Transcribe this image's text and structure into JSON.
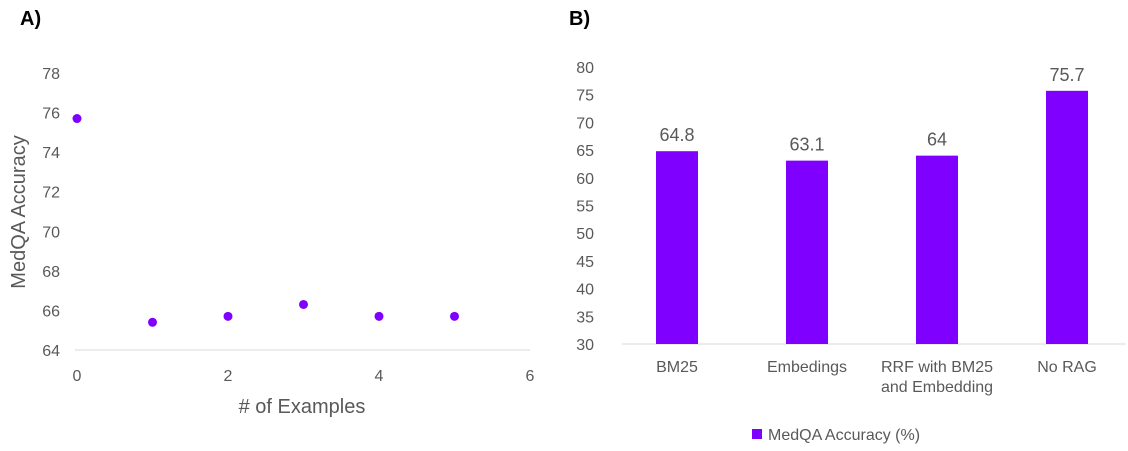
{
  "panels": {
    "a_label": "A)",
    "b_label": "B)"
  },
  "chart_data": [
    {
      "type": "scatter",
      "xlabel": "# of Examples",
      "ylabel": "MedQA  Accuracy",
      "xlim": [
        0,
        6
      ],
      "ylim": [
        64,
        78
      ],
      "x_ticks": [
        0,
        2,
        4,
        6
      ],
      "y_ticks": [
        64,
        66,
        68,
        70,
        72,
        74,
        76,
        78
      ],
      "grid": false,
      "color": "#7F00FF",
      "points": [
        {
          "x": 0,
          "y": 75.7
        },
        {
          "x": 1,
          "y": 65.4
        },
        {
          "x": 2,
          "y": 65.7
        },
        {
          "x": 3,
          "y": 66.3
        },
        {
          "x": 4,
          "y": 65.7
        },
        {
          "x": 5,
          "y": 65.7
        }
      ]
    },
    {
      "type": "bar",
      "categories": [
        [
          "BM25"
        ],
        [
          "Embedings"
        ],
        [
          "RRF with BM25",
          "and Embedding"
        ],
        [
          "No RAG"
        ]
      ],
      "series": [
        {
          "name": "MedQA Accuracy (%)",
          "values": [
            64.8,
            63.1,
            64,
            75.7
          ],
          "color": "#7F00FF"
        }
      ],
      "value_labels": [
        "64.8",
        "63.1",
        "64",
        "75.7"
      ],
      "ylim": [
        30,
        80
      ],
      "y_ticks": [
        30,
        35,
        40,
        45,
        50,
        55,
        60,
        65,
        70,
        75,
        80
      ],
      "grid": false,
      "legend_position": "bottom"
    }
  ]
}
